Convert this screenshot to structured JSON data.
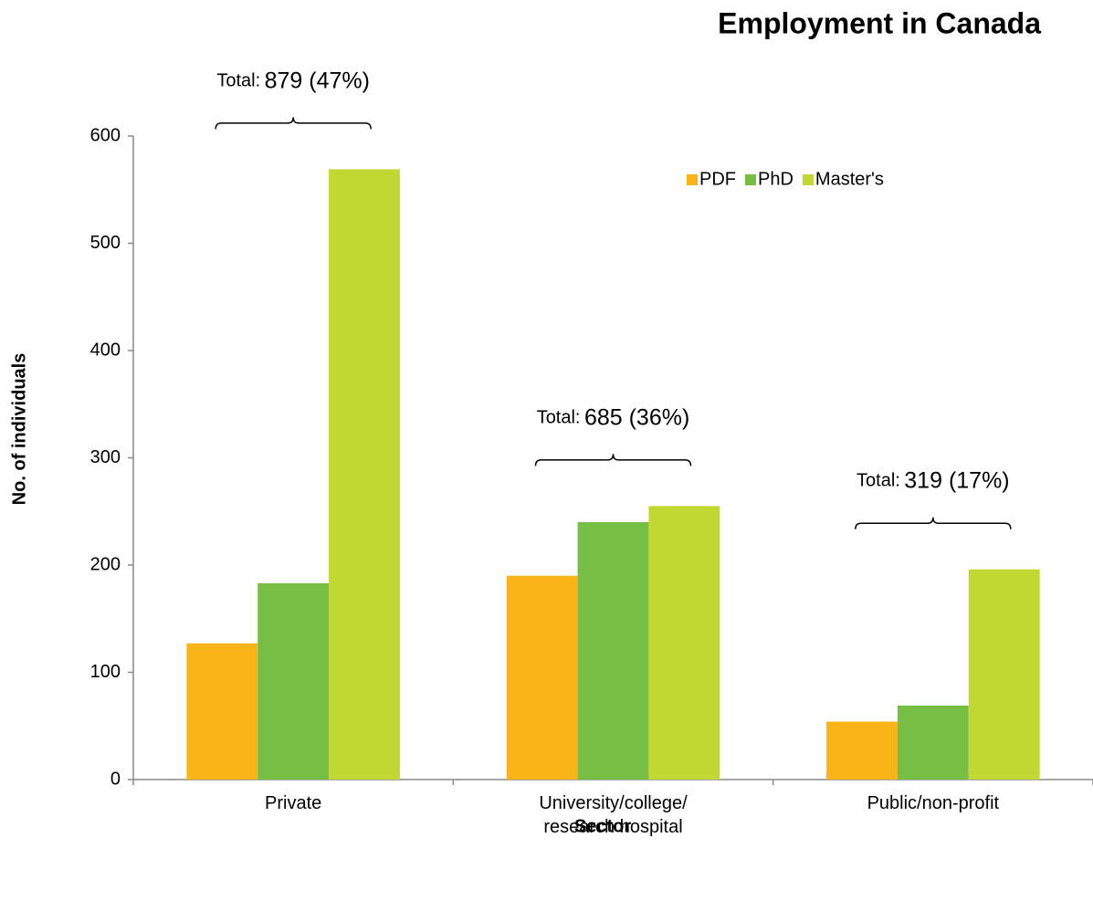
{
  "chart_data": {
    "type": "bar",
    "title": "Employment in Canada",
    "xlabel": "Sector",
    "ylabel": "No. of individuals",
    "categories": [
      "Private",
      "University/college/\nresearch hospital",
      "Public/non-profit"
    ],
    "series": [
      {
        "name": "PDF",
        "color": "#fbb417",
        "values": [
          127,
          190,
          54
        ]
      },
      {
        "name": "PhD",
        "color": "#77bf44",
        "values": [
          183,
          240,
          69
        ]
      },
      {
        "name": "Master's",
        "color": "#c1d732",
        "values": [
          569,
          255,
          196
        ]
      }
    ],
    "annotations": [
      {
        "prefix": "Total:",
        "text": "879 (47%)"
      },
      {
        "prefix": "Total:",
        "text": "685 (36%)"
      },
      {
        "prefix": "Total:",
        "text": "319 (17%)"
      }
    ],
    "ylim": [
      0,
      600
    ],
    "yticks": [
      0,
      100,
      200,
      300,
      400,
      500,
      600
    ],
    "grid": false,
    "legend": "top right"
  }
}
